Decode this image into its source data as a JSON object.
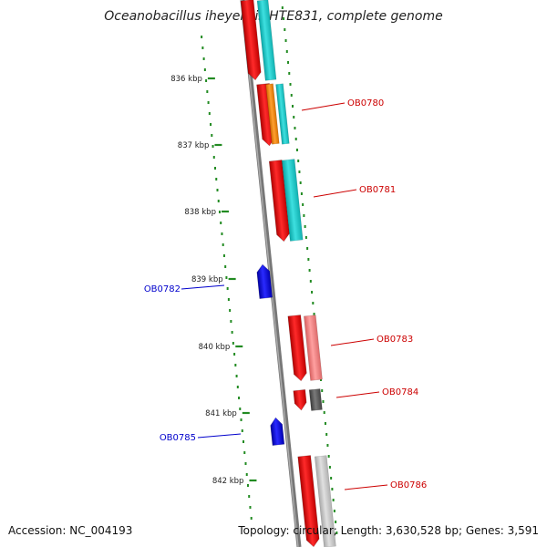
{
  "title": "Oceanobacillus iheyensis HTE831, complete genome",
  "footer": {
    "accession": "Accession: NC_004193",
    "stats": "Topology: circular; Length: 3,630,528 bp; Genes: 3,591"
  },
  "scale": {
    "ticks": [
      {
        "label": "836 kbp"
      },
      {
        "label": "837 kbp"
      },
      {
        "label": "838 kbp"
      },
      {
        "label": "839 kbp"
      },
      {
        "label": "840 kbp"
      },
      {
        "label": "841 kbp"
      },
      {
        "label": "842 kbp"
      }
    ]
  },
  "genes": [
    {
      "label": "OB0780",
      "strand": "reverse",
      "color": "#cc0000"
    },
    {
      "label": "OB0781",
      "strand": "reverse",
      "color": "#cc0000"
    },
    {
      "label": "OB0782",
      "strand": "forward",
      "color": "#0000cc"
    },
    {
      "label": "OB0783",
      "strand": "reverse",
      "color": "#cc0000"
    },
    {
      "label": "OB0784",
      "strand": "reverse",
      "color": "#cc0000"
    },
    {
      "label": "OB0785",
      "strand": "forward",
      "color": "#0000cc"
    },
    {
      "label": "OB0786",
      "strand": "reverse",
      "color": "#cc0000"
    }
  ],
  "colors": {
    "backbone": "#888888",
    "tick": "#228B22",
    "cds_reverse": "#ff0000",
    "cds_forward": "#0000ff",
    "cog_cyan": "#22cccc",
    "cog_orange": "#ff8c00",
    "cog_pink": "#f08080",
    "cog_dark_gray": "#555555",
    "cog_light_gray": "#bbbbbb"
  }
}
